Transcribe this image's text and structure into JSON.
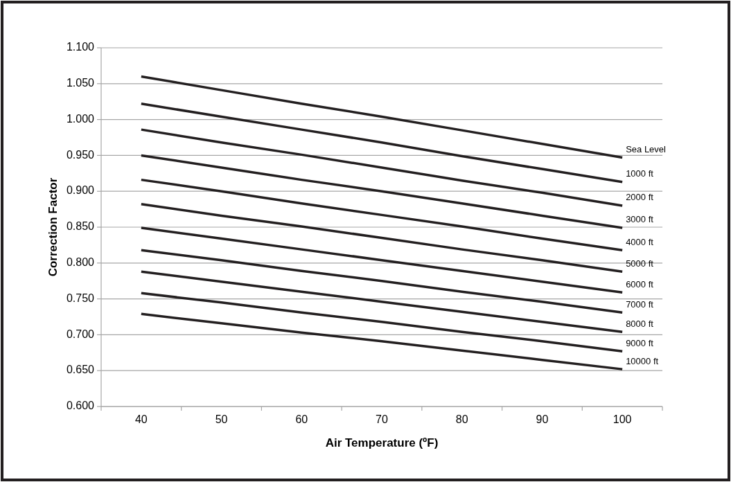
{
  "chart_data": {
    "type": "line",
    "xlabel": "Air Temperature (ºF)",
    "ylabel": "Correction Factor",
    "categories": [
      "40",
      "50",
      "60",
      "70",
      "80",
      "90",
      "100"
    ],
    "ylim": [
      0.6,
      1.1
    ],
    "yticks": [
      {
        "value": 0.6,
        "label": "0.600"
      },
      {
        "value": 0.65,
        "label": "0.650"
      },
      {
        "value": 0.7,
        "label": "0.700"
      },
      {
        "value": 0.75,
        "label": "0.750"
      },
      {
        "value": 0.8,
        "label": "0.800"
      },
      {
        "value": 0.85,
        "label": "0.850"
      },
      {
        "value": 0.9,
        "label": "0.900"
      },
      {
        "value": 0.95,
        "label": "0.950"
      },
      {
        "value": 1.0,
        "label": "1.000"
      },
      {
        "value": 1.05,
        "label": "1.050"
      },
      {
        "value": 1.1,
        "label": "1.100"
      }
    ],
    "grid": "y",
    "legend": false,
    "marker": "none",
    "line_style": "solid",
    "series": [
      {
        "name": "Sea Level",
        "color": "#231f20",
        "values": [
          1.06,
          1.041,
          1.022,
          1.004,
          0.985,
          0.966,
          0.947
        ]
      },
      {
        "name": "1000 ft",
        "color": "#231f20",
        "values": [
          1.022,
          1.004,
          0.986,
          0.968,
          0.949,
          0.931,
          0.913
        ]
      },
      {
        "name": "2000 ft",
        "color": "#231f20",
        "values": [
          0.986,
          0.968,
          0.951,
          0.933,
          0.915,
          0.898,
          0.88
        ]
      },
      {
        "name": "3000 ft",
        "color": "#231f20",
        "values": [
          0.95,
          0.933,
          0.916,
          0.9,
          0.883,
          0.866,
          0.849
        ]
      },
      {
        "name": "4000 ft",
        "color": "#231f20",
        "values": [
          0.916,
          0.9,
          0.883,
          0.867,
          0.851,
          0.834,
          0.818
        ]
      },
      {
        "name": "5000 ft",
        "color": "#231f20",
        "values": [
          0.882,
          0.866,
          0.851,
          0.835,
          0.819,
          0.804,
          0.788
        ]
      },
      {
        "name": "6000 ft",
        "color": "#231f20",
        "values": [
          0.849,
          0.834,
          0.819,
          0.804,
          0.789,
          0.774,
          0.759
        ]
      },
      {
        "name": "7000 ft",
        "color": "#231f20",
        "values": [
          0.818,
          0.804,
          0.789,
          0.775,
          0.76,
          0.746,
          0.731
        ]
      },
      {
        "name": "8000 ft",
        "color": "#231f20",
        "values": [
          0.788,
          0.774,
          0.76,
          0.746,
          0.732,
          0.718,
          0.704
        ]
      },
      {
        "name": "9000 ft",
        "color": "#231f20",
        "values": [
          0.758,
          0.745,
          0.731,
          0.718,
          0.704,
          0.691,
          0.677
        ]
      },
      {
        "name": "10000 ft",
        "color": "#231f20",
        "values": [
          0.729,
          0.716,
          0.703,
          0.691,
          0.678,
          0.665,
          0.652
        ]
      }
    ]
  }
}
